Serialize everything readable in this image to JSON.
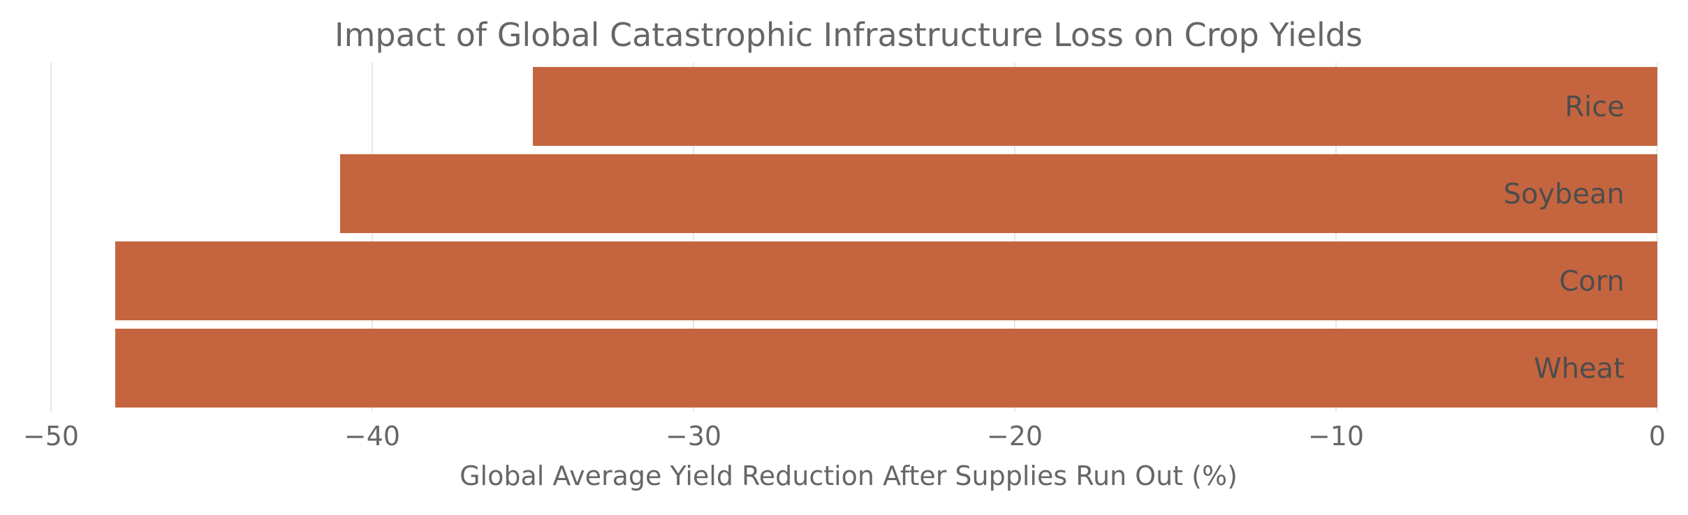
{
  "chart_data": {
    "type": "bar",
    "orientation": "horizontal",
    "title": "Impact of Global Catastrophic Infrastructure Loss on Crop Yields",
    "xlabel": "Global Average Yield Reduction After Supplies Run Out (%)",
    "ylabel": "",
    "categories": [
      "Rice",
      "Soybean",
      "Corn",
      "Wheat"
    ],
    "values": [
      -35,
      -41,
      -48,
      -48
    ],
    "xlim": [
      -50,
      0
    ],
    "xticks": [
      -50,
      -40,
      -30,
      -20,
      -10,
      0
    ],
    "xtick_labels": [
      "−50",
      "−40",
      "−30",
      "−20",
      "−10",
      "0"
    ],
    "grid": "vertical",
    "legend": "none",
    "bar_color": "#c5653f",
    "label_placement": "inside-right"
  },
  "colors": {
    "title": "#666666",
    "tick_label": "#666666",
    "bar_label": "#4d4d4d",
    "grid": "#dddddd"
  }
}
